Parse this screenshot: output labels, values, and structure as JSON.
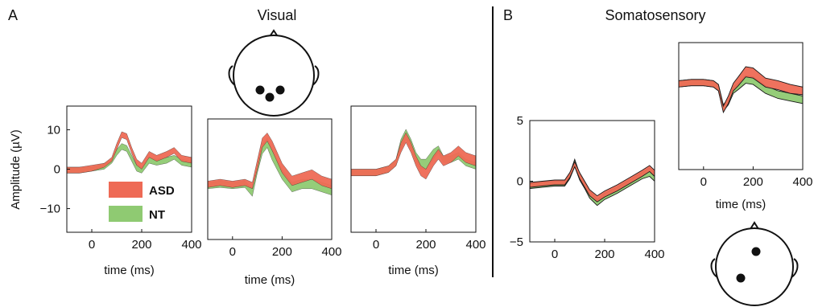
{
  "colors": {
    "asd": "#ee6a55",
    "nt": "#8fca72",
    "outline": "#1a1a1a"
  },
  "panels": {
    "A": {
      "letter": "A",
      "title": "Visual"
    },
    "B": {
      "letter": "B",
      "title": "Somatosensory"
    }
  },
  "legend": {
    "asd": "ASD",
    "nt": "NT"
  },
  "axis": {
    "xlabel": "time (ms)",
    "ylabel": "Amplitude (µV)"
  },
  "icons": [
    "head-visual-icon",
    "head-somatosensory-icon"
  ],
  "chart_data": [
    {
      "type": "area",
      "panel": "A",
      "x": [
        -100,
        -50,
        0,
        50,
        80,
        100,
        120,
        140,
        160,
        180,
        200,
        230,
        260,
        300,
        330,
        360,
        400
      ],
      "xlim": [
        -100,
        400
      ],
      "ylim": [
        -16,
        16
      ],
      "xticks": [
        0,
        200,
        400
      ],
      "yticks": [
        -10,
        0,
        10
      ],
      "ylabel": "Amplitude (µV)",
      "xlabel": "time (ms)",
      "series": [
        {
          "name": "ASD",
          "lower": [
            -1,
            -1,
            -0.5,
            0.5,
            2,
            5,
            8,
            7.5,
            4,
            1,
            0,
            3,
            2,
            3,
            4,
            2,
            1.5
          ],
          "upper": [
            0.5,
            0.5,
            1,
            1.5,
            3,
            6.5,
            9.5,
            9,
            5.5,
            2.5,
            1.5,
            4.5,
            3.5,
            4.5,
            5.5,
            3.5,
            3
          ]
        },
        {
          "name": "NT",
          "lower": [
            -1,
            -1,
            -0.5,
            0,
            1.5,
            3.5,
            5,
            4.5,
            2,
            -0.5,
            -1,
            1.5,
            1,
            1.5,
            2.5,
            1,
            0.5
          ],
          "upper": [
            0.5,
            0.5,
            0.5,
            1.5,
            2.5,
            5,
            6.5,
            6,
            3.5,
            1,
            0.5,
            3,
            2.5,
            3,
            3.5,
            2.5,
            2
          ]
        }
      ]
    },
    {
      "type": "area",
      "panel": "A",
      "x": [
        -100,
        -50,
        0,
        50,
        80,
        100,
        120,
        140,
        160,
        200,
        240,
        280,
        320,
        360,
        400
      ],
      "xlim": [
        -100,
        400
      ],
      "ylim": [
        -9,
        10
      ],
      "xticks": [
        0,
        200,
        400
      ],
      "xlabel": "time (ms)",
      "series": [
        {
          "name": "ASD",
          "lower": [
            -0.8,
            -0.5,
            -0.8,
            -0.5,
            -1,
            2,
            5.5,
            6.5,
            5,
            1.5,
            -0.5,
            0,
            0.5,
            -0.5,
            -1
          ],
          "upper": [
            0.2,
            0.5,
            0.2,
            0.5,
            0,
            3.5,
            7,
            7.8,
            6.5,
            3,
            1,
            1.5,
            2,
            1,
            0.5
          ]
        },
        {
          "name": "NT",
          "lower": [
            -1,
            -0.8,
            -1,
            -0.8,
            -2.2,
            1.5,
            4.5,
            5.5,
            3.5,
            0.5,
            -1.5,
            -1,
            -1,
            -1.5,
            -2
          ],
          "upper": [
            0,
            0.2,
            0,
            0.2,
            -1,
            2.8,
            6,
            7,
            5,
            2,
            0,
            0.5,
            0.5,
            0,
            -0.5
          ]
        }
      ]
    },
    {
      "type": "area",
      "panel": "A",
      "x": [
        -100,
        -50,
        0,
        50,
        80,
        100,
        120,
        140,
        160,
        180,
        200,
        230,
        250,
        270,
        300,
        330,
        360,
        400
      ],
      "xlim": [
        -100,
        400
      ],
      "ylim": [
        -9,
        10
      ],
      "xticks": [
        0,
        200,
        400
      ],
      "xlabel": "time (ms)",
      "series": [
        {
          "name": "ASD",
          "lower": [
            -0.5,
            -0.5,
            -0.5,
            0,
            1,
            3,
            4.5,
            3,
            1,
            -0.5,
            -1,
            1,
            2,
            1,
            1.5,
            2.5,
            1.5,
            1
          ],
          "upper": [
            0.5,
            0.5,
            0.5,
            1,
            2,
            4.5,
            6,
            4.5,
            2.5,
            1,
            0.5,
            2.5,
            3.5,
            2.5,
            3,
            4,
            3,
            2.5
          ]
        },
        {
          "name": "NT",
          "lower": [
            -0.5,
            -0.5,
            -0.5,
            0,
            1,
            3.5,
            5,
            3.5,
            1.5,
            0.5,
            0.5,
            2,
            3,
            1.5,
            1.5,
            2,
            1,
            0.5
          ],
          "upper": [
            0.5,
            0.5,
            0.5,
            1,
            2,
            5,
            6.5,
            5,
            3,
            2,
            2,
            3.5,
            4,
            2.5,
            2.5,
            3,
            2,
            1.5
          ]
        }
      ]
    },
    {
      "type": "area",
      "panel": "B",
      "x": [
        -100,
        -50,
        0,
        40,
        60,
        80,
        100,
        120,
        140,
        170,
        200,
        250,
        300,
        350,
        380,
        400
      ],
      "xlim": [
        -100,
        400
      ],
      "ylim": [
        -5,
        5
      ],
      "xticks": [
        0,
        200,
        400
      ],
      "yticks": [
        -5,
        0,
        5
      ],
      "xlabel": "",
      "series": [
        {
          "name": "ASD",
          "lower": [
            -0.5,
            -0.4,
            -0.3,
            -0.3,
            0.3,
            1.2,
            0.2,
            -0.5,
            -1.2,
            -1.7,
            -1.3,
            -0.8,
            -0.2,
            0.4,
            0.8,
            0.4
          ],
          "upper": [
            -0.1,
            0,
            0.1,
            0.1,
            0.7,
            1.6,
            0.7,
            0,
            -0.7,
            -1.2,
            -0.8,
            -0.3,
            0.3,
            0.9,
            1.3,
            0.9
          ]
        },
        {
          "name": "NT",
          "lower": [
            -0.6,
            -0.5,
            -0.4,
            -0.4,
            0.2,
            1.2,
            0.1,
            -0.6,
            -1.4,
            -2,
            -1.5,
            -1,
            -0.4,
            0.2,
            0.4,
            0
          ],
          "upper": [
            -0.2,
            -0.1,
            0,
            0,
            0.6,
            1.8,
            0.6,
            -0.1,
            -0.8,
            -1.5,
            -1,
            -0.5,
            0.1,
            0.7,
            1.1,
            0.7
          ]
        }
      ]
    },
    {
      "type": "area",
      "panel": "B",
      "x": [
        -100,
        -50,
        0,
        40,
        60,
        80,
        100,
        120,
        140,
        170,
        200,
        250,
        300,
        350,
        400
      ],
      "xlim": [
        -100,
        400
      ],
      "ylim": [
        -5,
        5
      ],
      "xticks": [
        0,
        200,
        400
      ],
      "xlabel": "time (ms)",
      "series": [
        {
          "name": "ASD",
          "lower": [
            1.5,
            1.6,
            1.6,
            1.5,
            1.2,
            -0.5,
            0.2,
            1.2,
            1.6,
            2.3,
            2.2,
            1.5,
            1.3,
            1,
            0.9
          ],
          "upper": [
            2,
            2.1,
            2.1,
            2,
            1.7,
            0,
            0.8,
            1.8,
            2.3,
            3.1,
            3,
            2.2,
            2,
            1.7,
            1.5
          ]
        },
        {
          "name": "NT",
          "lower": [
            1.5,
            1.6,
            1.6,
            1.5,
            1.2,
            -0.4,
            0.1,
            1,
            1.3,
            1.8,
            1.7,
            1,
            0.6,
            0.4,
            0.2
          ],
          "upper": [
            2,
            2.1,
            2.1,
            2,
            1.7,
            0.1,
            0.6,
            1.5,
            1.8,
            2.4,
            2.3,
            1.6,
            1.2,
            1,
            0.8
          ]
        }
      ]
    }
  ]
}
